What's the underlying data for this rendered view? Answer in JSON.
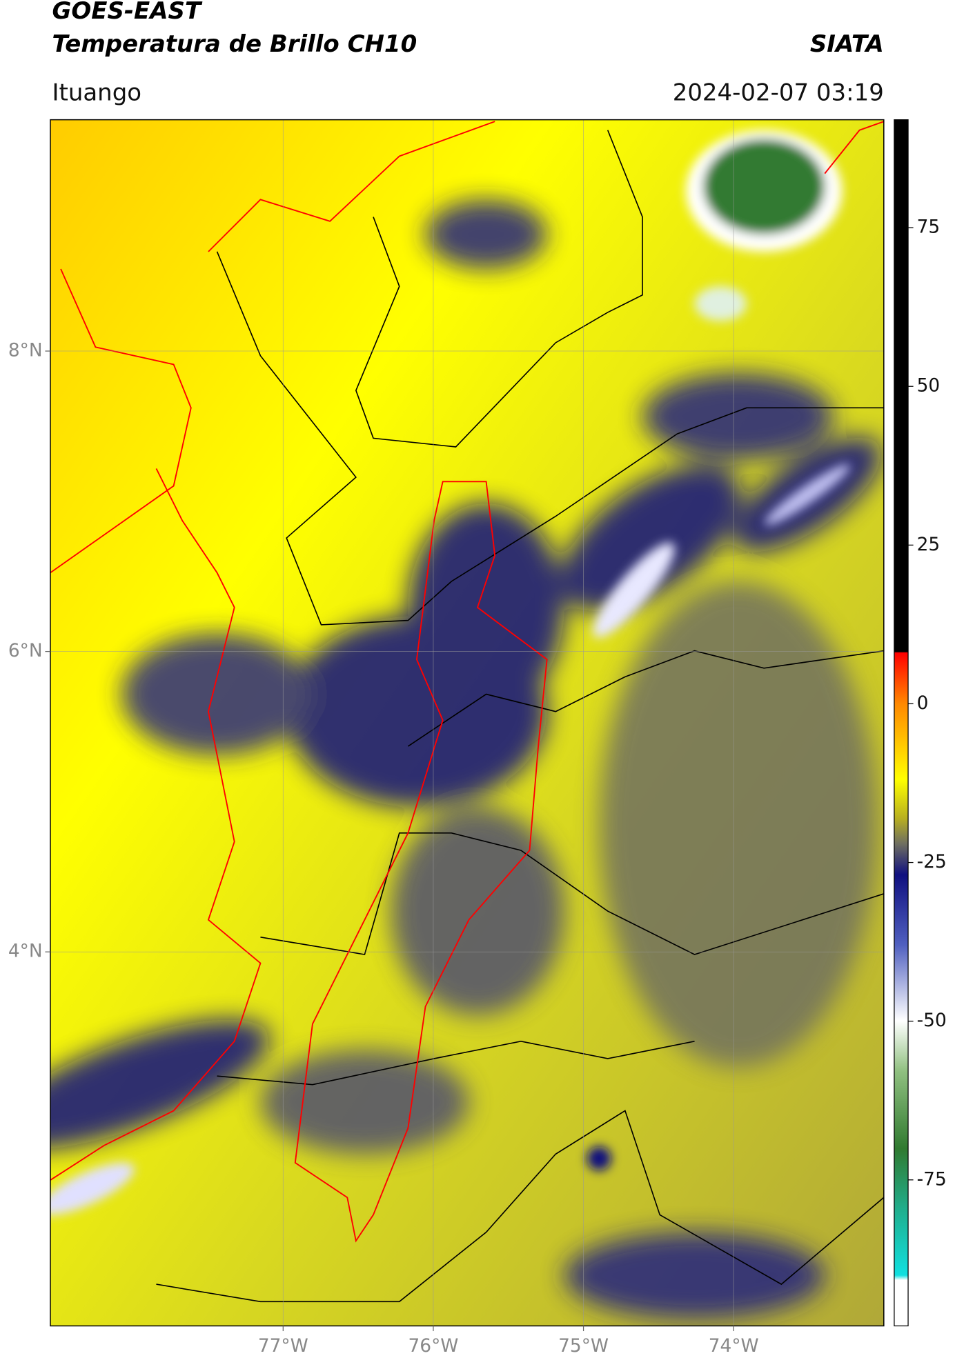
{
  "header": {
    "title": "GOES-EAST",
    "subtitle": "Temperatura de Brillo CH10",
    "org": "SIATA",
    "location": "Ituango",
    "datetime": "2024-02-07 03:19"
  },
  "map": {
    "xlim": [
      -78.55,
      -73.0
    ],
    "ylim": [
      1.51,
      9.54
    ],
    "xticks": [
      {
        "value": -77,
        "label": "77°W"
      },
      {
        "value": -76,
        "label": "76°W"
      },
      {
        "value": -75,
        "label": "75°W"
      },
      {
        "value": -74,
        "label": "74°W"
      }
    ],
    "yticks": [
      {
        "value": 8,
        "label": "8°N"
      },
      {
        "value": 6,
        "label": "6°N"
      },
      {
        "value": 4,
        "label": "4°N"
      }
    ],
    "grid": true
  },
  "colorbar": {
    "lim": [
      -98,
      92
    ],
    "ticks": [
      75,
      50,
      25,
      0,
      -25,
      -50,
      -75
    ]
  }
}
